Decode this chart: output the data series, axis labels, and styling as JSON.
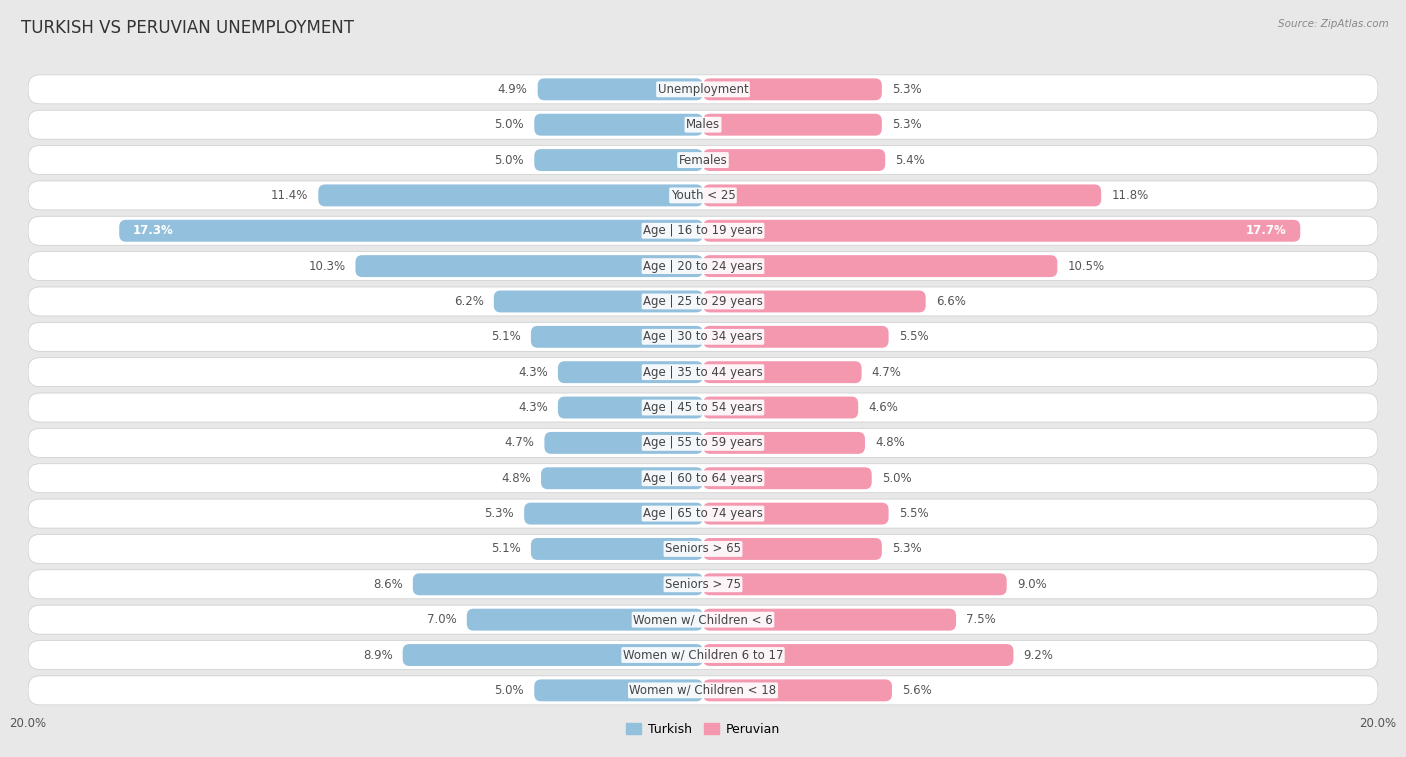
{
  "title": "TURKISH VS PERUVIAN UNEMPLOYMENT",
  "source": "Source: ZipAtlas.com",
  "categories": [
    "Unemployment",
    "Males",
    "Females",
    "Youth < 25",
    "Age | 16 to 19 years",
    "Age | 20 to 24 years",
    "Age | 25 to 29 years",
    "Age | 30 to 34 years",
    "Age | 35 to 44 years",
    "Age | 45 to 54 years",
    "Age | 55 to 59 years",
    "Age | 60 to 64 years",
    "Age | 65 to 74 years",
    "Seniors > 65",
    "Seniors > 75",
    "Women w/ Children < 6",
    "Women w/ Children 6 to 17",
    "Women w/ Children < 18"
  ],
  "turkish": [
    4.9,
    5.0,
    5.0,
    11.4,
    17.3,
    10.3,
    6.2,
    5.1,
    4.3,
    4.3,
    4.7,
    4.8,
    5.3,
    5.1,
    8.6,
    7.0,
    8.9,
    5.0
  ],
  "peruvian": [
    5.3,
    5.3,
    5.4,
    11.8,
    17.7,
    10.5,
    6.6,
    5.5,
    4.7,
    4.6,
    4.8,
    5.0,
    5.5,
    5.3,
    9.0,
    7.5,
    9.2,
    5.6
  ],
  "turkish_color": "#93c0dd",
  "peruvian_color": "#f498b0",
  "turkish_label": "Turkish",
  "peruvian_label": "Peruvian",
  "axis_max": 20.0,
  "bar_height": 0.62,
  "bg_color": "#e8e8e8",
  "row_bg_color": "#ffffff",
  "label_fontsize": 8.5,
  "title_fontsize": 12,
  "value_color": "#555555",
  "cat_label_color": "#444444"
}
